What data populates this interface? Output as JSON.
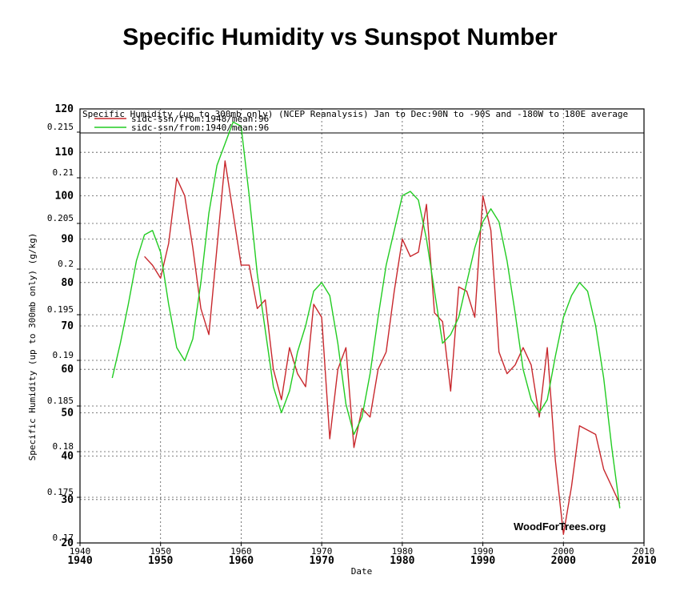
{
  "page": {
    "title": "Specific Humidity vs Sunspot Number"
  },
  "chart_data": {
    "type": "line",
    "header_text": "Specific Humidity (up to 300mb only) (NCEP Reanalysis) Jan to Dec:90N to -90S and -180W to 180E average",
    "xlabel": "Date",
    "ylabel": "Specific Humidity (up to 300mb only) (g/kg)",
    "xlim": [
      1940,
      2010
    ],
    "x_ticks": [
      "1940",
      "1950",
      "1960",
      "1970",
      "1980",
      "1990",
      "2000",
      "2010"
    ],
    "y_left_lim": [
      0.17,
      0.215
    ],
    "y_left_ticks": [
      "0.17",
      "0.175",
      "0.18",
      "0.185",
      "0.19",
      "0.195",
      "0.2",
      "0.205",
      "0.21",
      "0.215"
    ],
    "y_right_lim": [
      20,
      120
    ],
    "y_right_ticks": [
      "20",
      "30",
      "40",
      "50",
      "60",
      "70",
      "80",
      "90",
      "100",
      "110",
      "120"
    ],
    "grid": true,
    "legend_position": "top-left",
    "watermark": "WoodForTrees.org",
    "series": [
      {
        "name": "sidc-ssn/from:1948/mean:96",
        "color": "#c8282d",
        "axis": "right",
        "points": [
          [
            1948,
            86
          ],
          [
            1949,
            84
          ],
          [
            1950,
            81
          ],
          [
            1951,
            89
          ],
          [
            1952,
            104
          ],
          [
            1953,
            100
          ],
          [
            1954,
            88
          ],
          [
            1955,
            74
          ],
          [
            1956,
            68
          ],
          [
            1957,
            88
          ],
          [
            1958,
            108
          ],
          [
            1959,
            96
          ],
          [
            1960,
            84
          ],
          [
            1961,
            84
          ],
          [
            1962,
            74
          ],
          [
            1963,
            76
          ],
          [
            1964,
            60
          ],
          [
            1965,
            53
          ],
          [
            1966,
            65
          ],
          [
            1967,
            59
          ],
          [
            1968,
            56
          ],
          [
            1969,
            75
          ],
          [
            1970,
            72
          ],
          [
            1971,
            44
          ],
          [
            1972,
            60
          ],
          [
            1973,
            65
          ],
          [
            1974,
            42
          ],
          [
            1975,
            51
          ],
          [
            1976,
            49
          ],
          [
            1977,
            60
          ],
          [
            1978,
            64
          ],
          [
            1979,
            78
          ],
          [
            1980,
            90
          ],
          [
            1981,
            86
          ],
          [
            1982,
            87
          ],
          [
            1983,
            98
          ],
          [
            1984,
            73
          ],
          [
            1985,
            71
          ],
          [
            1986,
            55
          ],
          [
            1987,
            79
          ],
          [
            1988,
            78
          ],
          [
            1989,
            72
          ],
          [
            1990,
            100
          ],
          [
            1991,
            92
          ],
          [
            1992,
            64
          ],
          [
            1993,
            59
          ],
          [
            1994,
            61
          ],
          [
            1995,
            65
          ],
          [
            1996,
            61
          ],
          [
            1997,
            49
          ],
          [
            1998,
            65
          ],
          [
            1999,
            39
          ],
          [
            2000,
            22
          ],
          [
            2001,
            33
          ],
          [
            2002,
            47
          ],
          [
            2003,
            46
          ],
          [
            2004,
            45
          ],
          [
            2005,
            37
          ],
          [
            2006,
            33
          ],
          [
            2007,
            29
          ]
        ]
      },
      {
        "name": "sidc-ssn/from:1940/mean:96",
        "color": "#22cc22",
        "axis": "right",
        "points": [
          [
            1944,
            58
          ],
          [
            1945,
            66
          ],
          [
            1946,
            75
          ],
          [
            1947,
            85
          ],
          [
            1948,
            91
          ],
          [
            1949,
            92
          ],
          [
            1950,
            87
          ],
          [
            1951,
            75
          ],
          [
            1952,
            65
          ],
          [
            1953,
            62
          ],
          [
            1954,
            67
          ],
          [
            1955,
            80
          ],
          [
            1956,
            96
          ],
          [
            1957,
            107
          ],
          [
            1958,
            112
          ],
          [
            1959,
            117
          ],
          [
            1960,
            116
          ],
          [
            1961,
            100
          ],
          [
            1962,
            82
          ],
          [
            1963,
            69
          ],
          [
            1964,
            56
          ],
          [
            1965,
            50
          ],
          [
            1966,
            55
          ],
          [
            1967,
            64
          ],
          [
            1968,
            70
          ],
          [
            1969,
            78
          ],
          [
            1970,
            80
          ],
          [
            1971,
            77
          ],
          [
            1972,
            66
          ],
          [
            1973,
            52
          ],
          [
            1974,
            45
          ],
          [
            1975,
            49
          ],
          [
            1976,
            59
          ],
          [
            1977,
            72
          ],
          [
            1978,
            84
          ],
          [
            1979,
            92
          ],
          [
            1980,
            100
          ],
          [
            1981,
            101
          ],
          [
            1982,
            99
          ],
          [
            1983,
            90
          ],
          [
            1984,
            78
          ],
          [
            1985,
            66
          ],
          [
            1986,
            68
          ],
          [
            1987,
            72
          ],
          [
            1988,
            80
          ],
          [
            1989,
            88
          ],
          [
            1990,
            94
          ],
          [
            1991,
            97
          ],
          [
            1992,
            94
          ],
          [
            1993,
            85
          ],
          [
            1994,
            73
          ],
          [
            1995,
            60
          ],
          [
            1996,
            53
          ],
          [
            1997,
            50
          ],
          [
            1998,
            53
          ],
          [
            1999,
            63
          ],
          [
            2000,
            72
          ],
          [
            2001,
            77
          ],
          [
            2002,
            80
          ],
          [
            2003,
            78
          ],
          [
            2004,
            70
          ],
          [
            2005,
            58
          ],
          [
            2006,
            42
          ],
          [
            2007,
            28
          ]
        ]
      }
    ]
  }
}
